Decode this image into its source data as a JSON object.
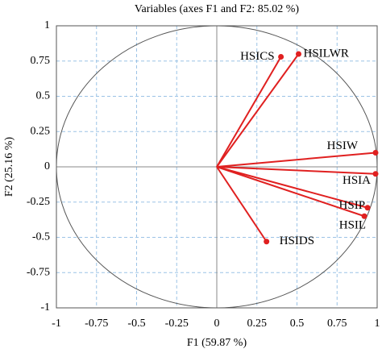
{
  "chart_data": {
    "type": "scatter",
    "title": "Variables (axes F1 and F2: 85.02 %)",
    "xlabel": "F1 (59.87 %)",
    "ylabel": "F2 (25.16 %)",
    "labels": [
      "HSICS",
      "HSILWR",
      "HSIW",
      "HSIA",
      "HSIP",
      "HSIL",
      "HSIDS"
    ],
    "x": [
      0.4,
      0.51,
      0.99,
      0.99,
      0.94,
      0.92,
      0.31
    ],
    "y": [
      0.78,
      0.8,
      0.1,
      -0.05,
      -0.29,
      -0.35,
      -0.53
    ],
    "color": "#e02020",
    "xlim": [
      -1,
      1
    ],
    "ylim": [
      -1,
      1
    ],
    "xticks": [
      -1,
      -0.75,
      -0.5,
      -0.25,
      0,
      0.25,
      0.5,
      0.75,
      1
    ],
    "yticks": [
      -1,
      -0.75,
      -0.5,
      -0.25,
      0,
      0.25,
      0.5,
      0.75,
      1
    ],
    "grid": true
  }
}
